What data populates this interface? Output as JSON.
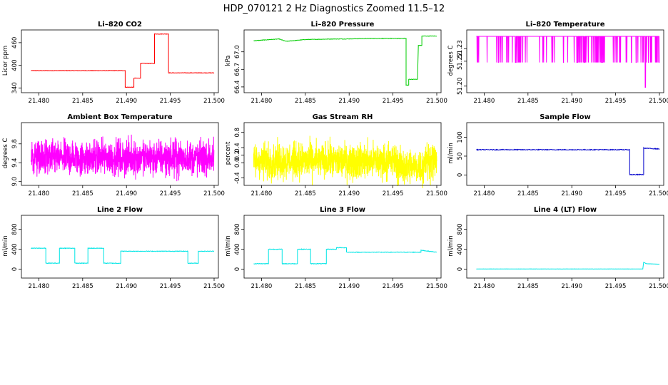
{
  "page": {
    "title": "HDP_070121  2 Hz Diagnostics Zoomed 11.5–12"
  },
  "chart_data": [
    {
      "type": "line",
      "title": "Li–820 CO2",
      "ylabel": "Licor ppm",
      "color": "#ff0000",
      "xlim": [
        21.4785,
        21.5
      ],
      "xticks": [
        "21.480",
        "21.485",
        "21.490",
        "21.495",
        "21.500"
      ],
      "xtick_values": [
        21.48,
        21.485,
        21.49,
        21.495,
        21.5
      ],
      "ylim": [
        335,
        490
      ],
      "yticks": [
        "340",
        "400",
        "460"
      ],
      "ytick_values": [
        340,
        400,
        460
      ],
      "noise": 0.6,
      "x": [
        21.4791,
        21.48985,
        21.48985,
        21.49085,
        21.49085,
        21.4916,
        21.4916,
        21.4932,
        21.4932,
        21.4948,
        21.4948,
        21.4983,
        21.4983,
        21.5
      ],
      "y": [
        386,
        386,
        342,
        342,
        366,
        366,
        405,
        405,
        483,
        483,
        380,
        380,
        380,
        380
      ]
    },
    {
      "type": "line",
      "title": "Li–820 Pressure",
      "ylabel": "kPa",
      "color": "#00cc00",
      "xlim": [
        21.4785,
        21.5
      ],
      "xticks": [
        "21.480",
        "21.485",
        "21.490",
        "21.495",
        "21.500"
      ],
      "xtick_values": [
        21.48,
        21.485,
        21.49,
        21.495,
        21.5
      ],
      "ylim": [
        66.35,
        67.35
      ],
      "yticks": [
        "66.4",
        "67.0"
      ],
      "ytick_values": [
        66.4,
        67.0
      ],
      "extra_ytick_values": [
        66.7
      ],
      "extra_yticks": [
        "66.7"
      ],
      "noise": 0.004,
      "x": [
        21.4791,
        21.482,
        21.4828,
        21.485,
        21.4883,
        21.4895,
        21.4925,
        21.4965,
        21.4965,
        21.4968,
        21.4968,
        21.4978,
        21.4979,
        21.498,
        21.4983,
        21.4983,
        21.5
      ],
      "y": [
        67.19,
        67.22,
        67.18,
        67.21,
        67.22,
        67.22,
        67.23,
        67.23,
        66.43,
        66.43,
        66.53,
        66.53,
        67.11,
        67.11,
        67.11,
        67.27,
        67.27
      ]
    },
    {
      "type": "line",
      "title": "Li–820 Temperature",
      "ylabel": "degrees C",
      "color": "#ff00ff",
      "xlim": [
        21.4785,
        21.5
      ],
      "xticks": [
        "21.480",
        "21.485",
        "21.490",
        "21.495",
        "21.500"
      ],
      "xtick_values": [
        21.48,
        21.485,
        21.49,
        21.495,
        21.5
      ],
      "ylim": [
        51.197,
        51.244
      ],
      "yticks": [
        "51.20",
        "51.22",
        "51.23"
      ],
      "ytick_values": [
        51.2,
        51.22,
        51.23
      ],
      "base": 51.24,
      "dip": 51.219,
      "deep_dip_x": 21.4984,
      "deep_dip_y": 51.199
    },
    {
      "type": "line",
      "title": "Ambient Box Temperature",
      "ylabel": "degrees C",
      "color": "#ff00ff",
      "xlim": [
        21.4785,
        21.5
      ],
      "xticks": [
        "21.480",
        "21.485",
        "21.490",
        "21.495",
        "21.500"
      ],
      "xtick_values": [
        21.48,
        21.485,
        21.49,
        21.495,
        21.5
      ],
      "ylim": [
        8.98,
        10.22
      ],
      "yticks": [
        "9.0",
        "9.4",
        "9.8"
      ],
      "ytick_values": [
        9.0,
        9.4,
        9.8
      ],
      "center": 9.5,
      "spread": 0.55
    },
    {
      "type": "line",
      "title": "Gas Stream RH",
      "ylabel": "percent",
      "color": "#ffff00",
      "xlim": [
        21.4785,
        21.5
      ],
      "xticks": [
        "21.480",
        "21.485",
        "21.490",
        "21.495",
        "21.500"
      ],
      "xtick_values": [
        21.48,
        21.485,
        21.49,
        21.495,
        21.5
      ],
      "ylim": [
        -0.52,
        1.02
      ],
      "yticks": [
        "-0.4",
        "0.2",
        "0.8"
      ],
      "ytick_values": [
        -0.4,
        0.2,
        0.8
      ],
      "extra_ytick_values": [
        0.0,
        0.4
      ],
      "extra_yticks": [
        "0.0",
        "0.4"
      ],
      "center": 0.05,
      "spread": 0.7
    },
    {
      "type": "line",
      "title": "Sample Flow",
      "ylabel": "ml/min",
      "color": "#0000cc",
      "xlim": [
        21.4785,
        21.5
      ],
      "xticks": [
        "21.480",
        "21.485",
        "21.490",
        "21.495",
        "21.500"
      ],
      "xtick_values": [
        21.48,
        21.485,
        21.49,
        21.495,
        21.5
      ],
      "ylim": [
        -20,
        135
      ],
      "yticks": [
        "0",
        "50",
        "100"
      ],
      "ytick_values": [
        0,
        50,
        100
      ],
      "noise": 1.0,
      "x": [
        21.4791,
        21.4966,
        21.4966,
        21.4982,
        21.4982,
        21.5
      ],
      "y": [
        67,
        67,
        1,
        1,
        71,
        69
      ]
    },
    {
      "type": "line",
      "title": "Line 2 Flow",
      "ylabel": "ml/min",
      "color": "#00e5e5",
      "xlim": [
        21.4785,
        21.5
      ],
      "xticks": [
        "21.480",
        "21.485",
        "21.490",
        "21.495",
        "21.500"
      ],
      "xtick_values": [
        21.48,
        21.485,
        21.49,
        21.495,
        21.5
      ],
      "ylim": [
        -120,
        1050
      ],
      "yticks": [
        "0",
        "400",
        "800"
      ],
      "ytick_values": [
        0,
        400,
        800
      ],
      "noise": 6,
      "x": [
        21.4791,
        21.4808,
        21.4808,
        21.48235,
        21.48235,
        21.4841,
        21.4841,
        21.4856,
        21.4856,
        21.4874,
        21.4874,
        21.48935,
        21.48935,
        21.497,
        21.497,
        21.4982,
        21.4982,
        21.5
      ],
      "y": [
        420,
        420,
        120,
        120,
        420,
        420,
        120,
        120,
        420,
        420,
        120,
        120,
        360,
        360,
        120,
        120,
        360,
        360
      ]
    },
    {
      "type": "line",
      "title": "Line 3 Flow",
      "ylabel": "ml/min",
      "color": "#00e5e5",
      "xlim": [
        21.4785,
        21.5
      ],
      "xticks": [
        "21.480",
        "21.485",
        "21.490",
        "21.495",
        "21.500"
      ],
      "xtick_values": [
        21.48,
        21.485,
        21.49,
        21.495,
        21.5
      ],
      "ylim": [
        -120,
        1050
      ],
      "yticks": [
        "0",
        "400",
        "800"
      ],
      "ytick_values": [
        0,
        400,
        800
      ],
      "noise": 6,
      "x": [
        21.4791,
        21.4808,
        21.4808,
        21.48235,
        21.48235,
        21.4841,
        21.4841,
        21.4856,
        21.4856,
        21.4874,
        21.4874,
        21.48855,
        21.48855,
        21.4897,
        21.4897,
        21.4982,
        21.4982,
        21.5
      ],
      "y": [
        110,
        110,
        400,
        400,
        110,
        110,
        400,
        400,
        110,
        110,
        400,
        400,
        430,
        430,
        340,
        340,
        380,
        340
      ]
    },
    {
      "type": "line",
      "title": "Line 4 (LT) Flow",
      "ylabel": "ml/min",
      "color": "#00e5e5",
      "xlim": [
        21.4785,
        21.5
      ],
      "xticks": [
        "21.480",
        "21.485",
        "21.490",
        "21.495",
        "21.500"
      ],
      "xtick_values": [
        21.48,
        21.485,
        21.49,
        21.495,
        21.5
      ],
      "ylim": [
        -120,
        1050
      ],
      "yticks": [
        "0",
        "400",
        "800"
      ],
      "ytick_values": [
        0,
        400,
        800
      ],
      "noise": 2,
      "x": [
        21.4791,
        21.4981,
        21.4982,
        21.4985,
        21.5
      ],
      "y": [
        5,
        5,
        140,
        110,
        100
      ]
    }
  ]
}
